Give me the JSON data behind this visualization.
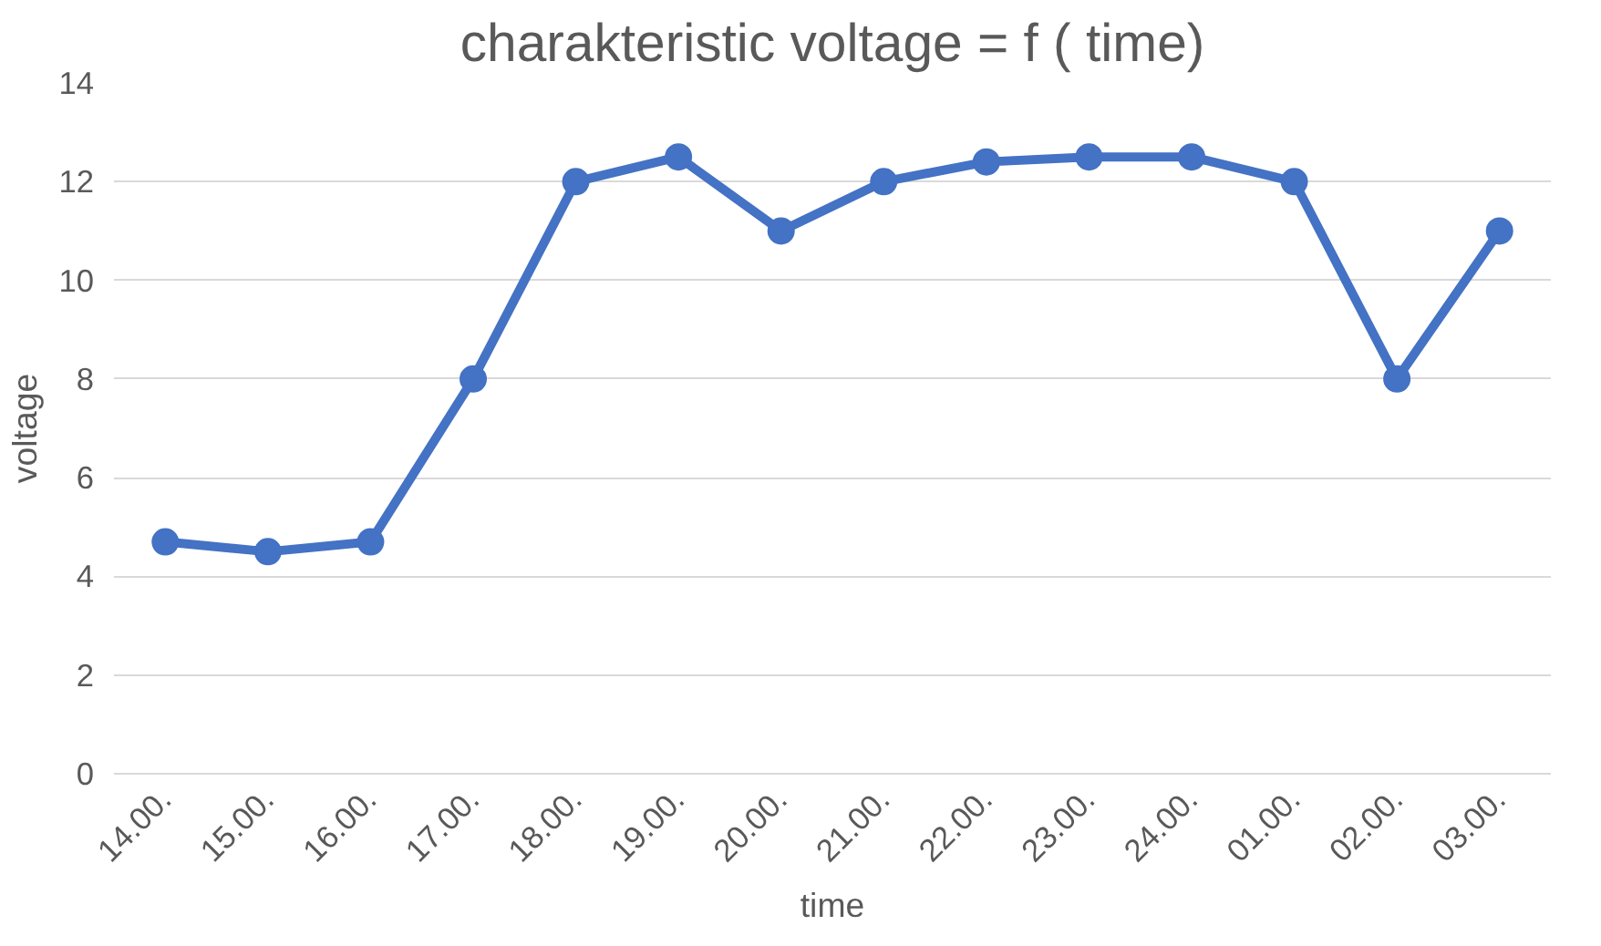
{
  "chart_data": {
    "type": "line",
    "title": "charakteristic voltage = f ( time)",
    "xlabel": "time",
    "ylabel": "voltage",
    "categories": [
      "14.00.",
      "15.00.",
      "16.00.",
      "17.00.",
      "18.00.",
      "19.00.",
      "20.00.",
      "21.00.",
      "22.00.",
      "23.00.",
      "24.00.",
      "01.00.",
      "02.00.",
      "03.00."
    ],
    "series": [
      {
        "color": "#4472c4",
        "values": [
          4.7,
          4.5,
          4.7,
          8,
          12,
          12.5,
          11,
          12,
          12.4,
          12.5,
          12.5,
          12,
          8,
          11
        ]
      }
    ],
    "ylim": [
      0,
      14
    ],
    "yticks": [
      0,
      2,
      4,
      6,
      8,
      10,
      12,
      14
    ],
    "grid": "y",
    "marker": "circle",
    "line_style": "solid"
  }
}
